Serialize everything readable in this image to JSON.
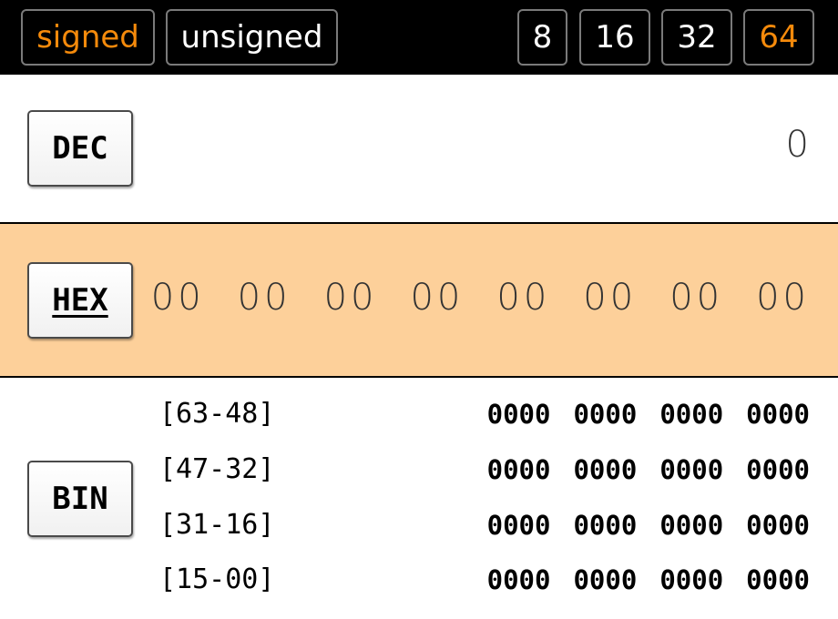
{
  "toolbar": {
    "signed_label": "signed",
    "unsigned_label": "unsigned",
    "width_8": "8",
    "width_16": "16",
    "width_32": "32",
    "width_64": "64",
    "selected_mode": "signed",
    "selected_width": "64",
    "active_color": "#f58a0b"
  },
  "dec": {
    "label": "DEC",
    "value": "0"
  },
  "hex": {
    "label": "HEX",
    "active": true,
    "highlight_color": "#fdd09a",
    "bytes": [
      "00",
      "00",
      "00",
      "00",
      "00",
      "00",
      "00",
      "00"
    ]
  },
  "bin": {
    "label": "BIN",
    "rows": [
      {
        "range": "[63-48]",
        "nibbles": [
          "0000",
          "0000",
          "0000",
          "0000"
        ]
      },
      {
        "range": "[47-32]",
        "nibbles": [
          "0000",
          "0000",
          "0000",
          "0000"
        ]
      },
      {
        "range": "[31-16]",
        "nibbles": [
          "0000",
          "0000",
          "0000",
          "0000"
        ]
      },
      {
        "range": "[15-00]",
        "nibbles": [
          "0000",
          "0000",
          "0000",
          "0000"
        ]
      }
    ]
  }
}
